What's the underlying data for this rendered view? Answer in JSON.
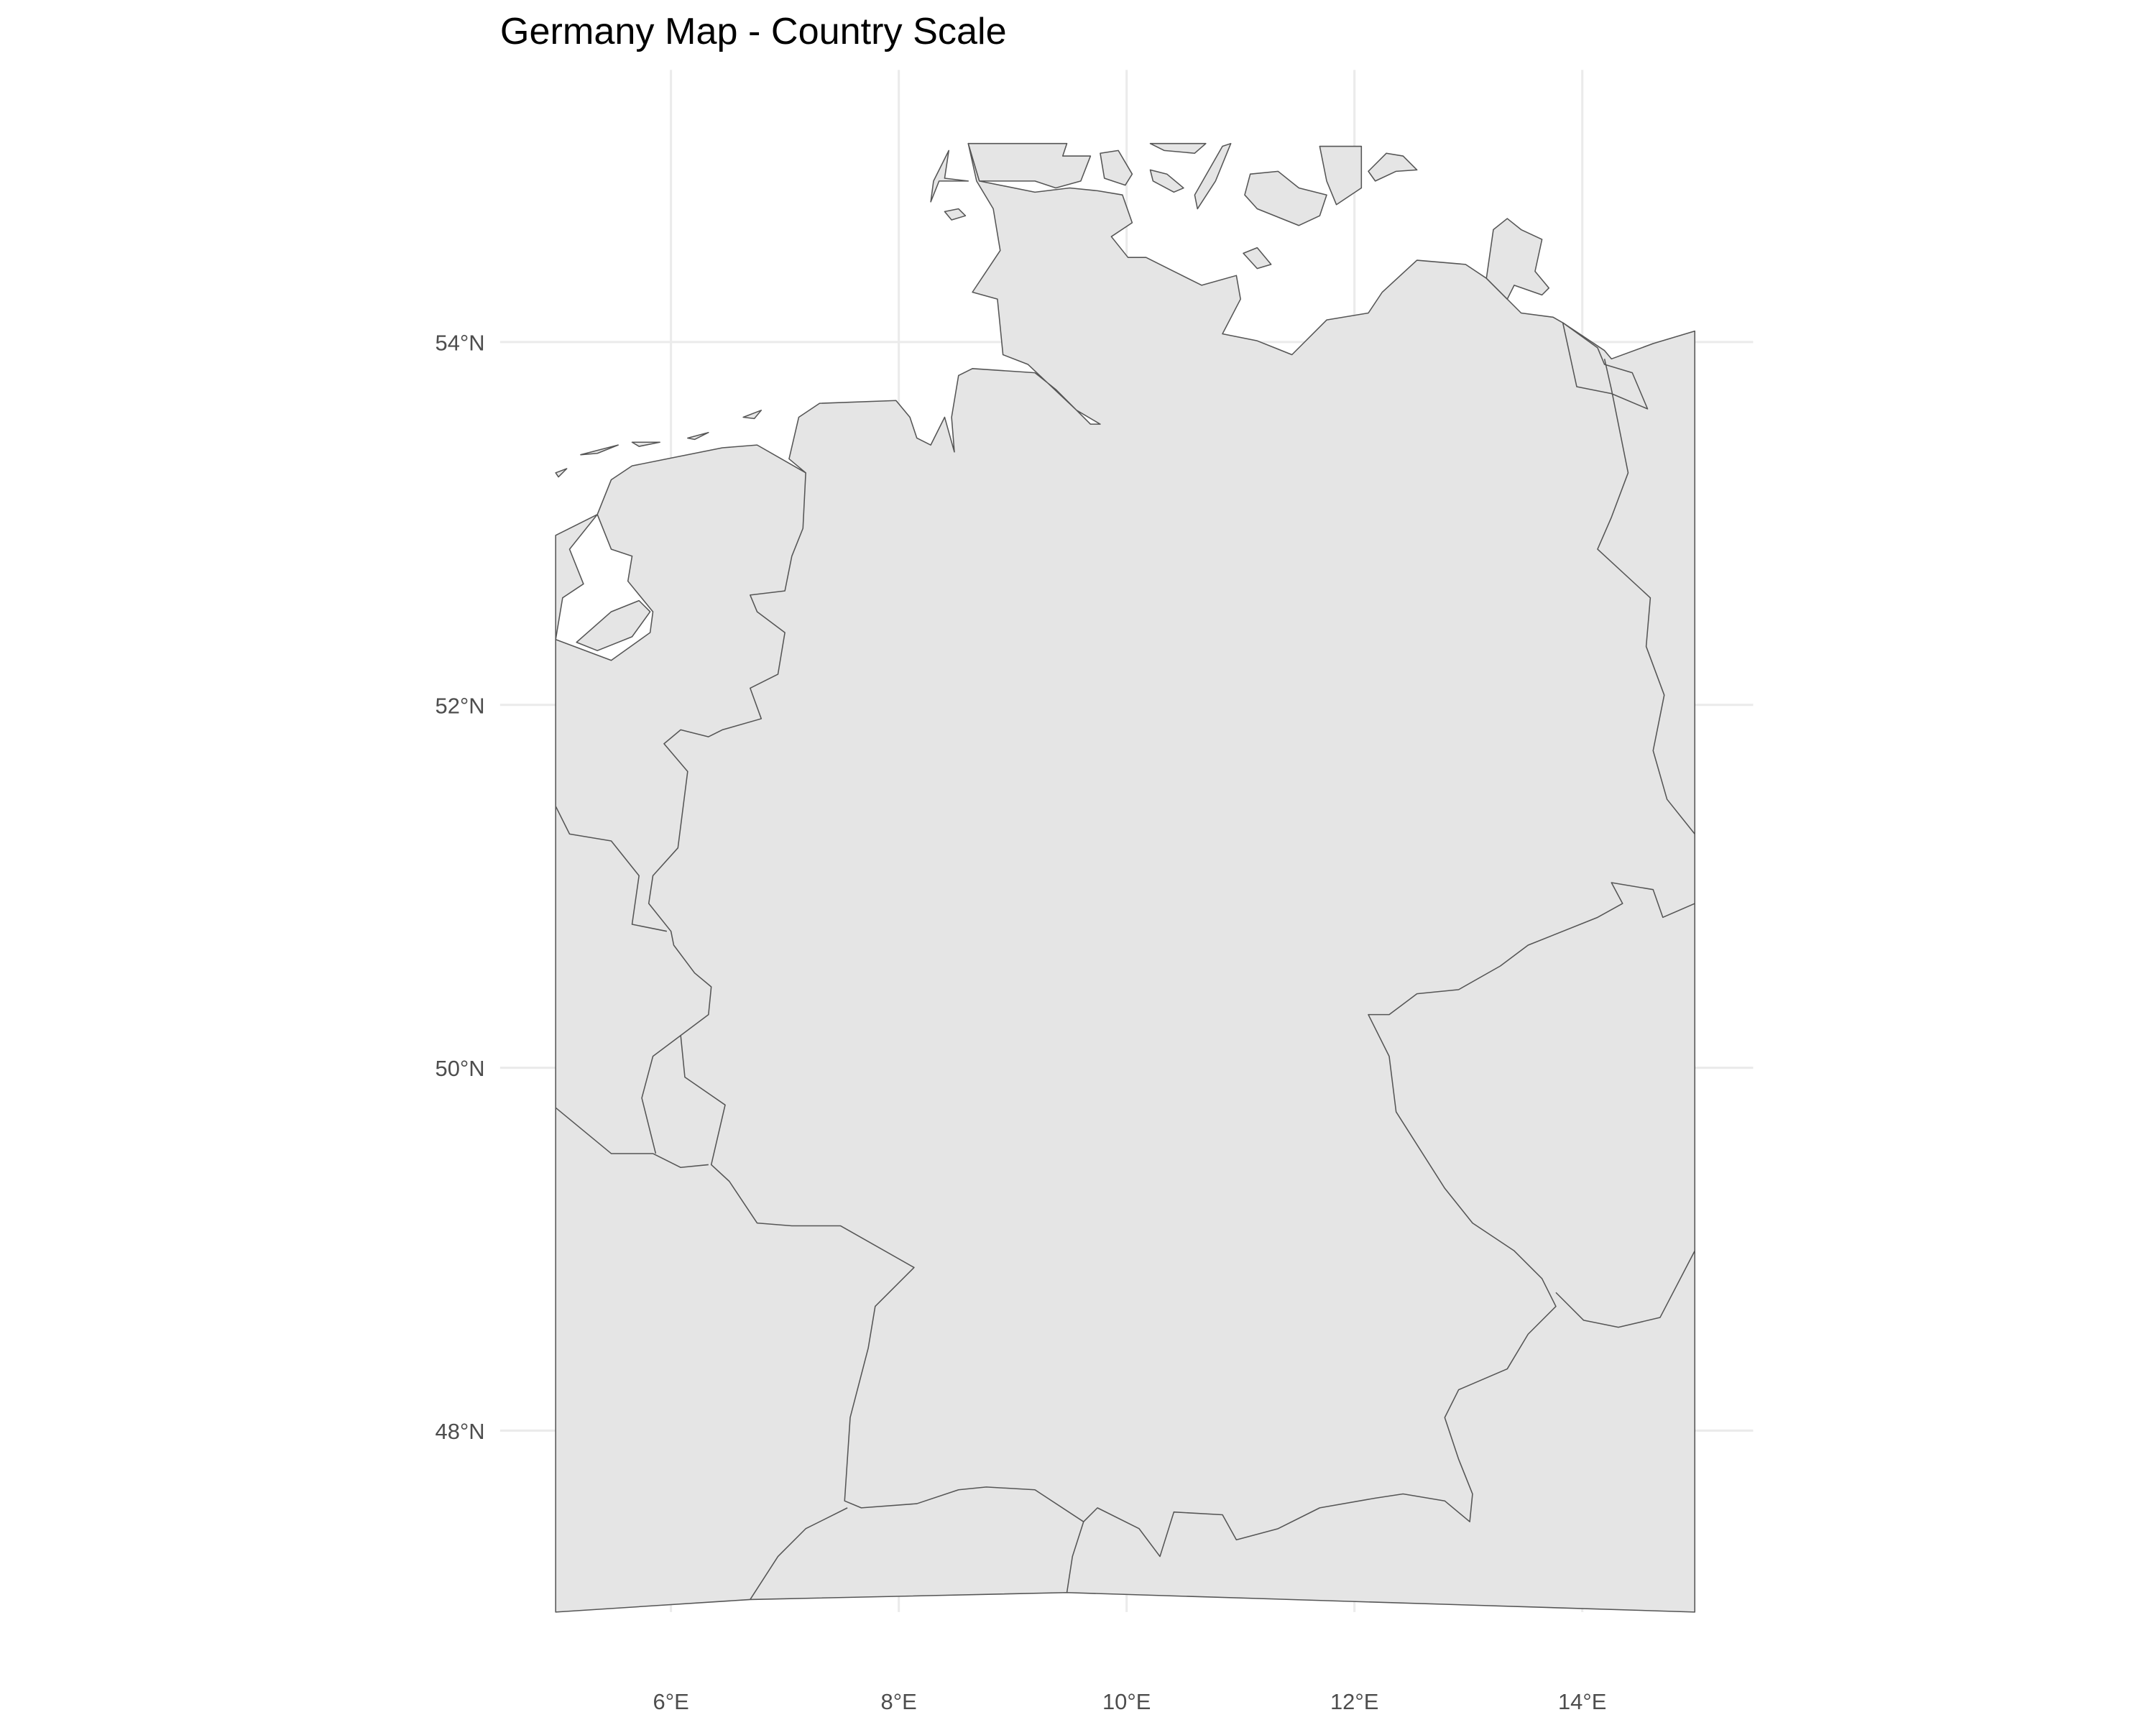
{
  "chart_data": {
    "type": "map",
    "title": "Germany Map - Country Scale",
    "xlim": [
      4.5,
      15.5
    ],
    "ylim": [
      47,
      55.5
    ],
    "xticks": [
      {
        "value": 6,
        "label": "6°E"
      },
      {
        "value": 8,
        "label": "8°E"
      },
      {
        "value": 10,
        "label": "10°E"
      },
      {
        "value": 12,
        "label": "12°E"
      },
      {
        "value": 14,
        "label": "14°E"
      }
    ],
    "yticks": [
      {
        "value": 48,
        "label": "48°N"
      },
      {
        "value": 50,
        "label": "50°N"
      },
      {
        "value": 52,
        "label": "52°N"
      },
      {
        "value": 54,
        "label": "54°N"
      }
    ],
    "grid": true
  }
}
